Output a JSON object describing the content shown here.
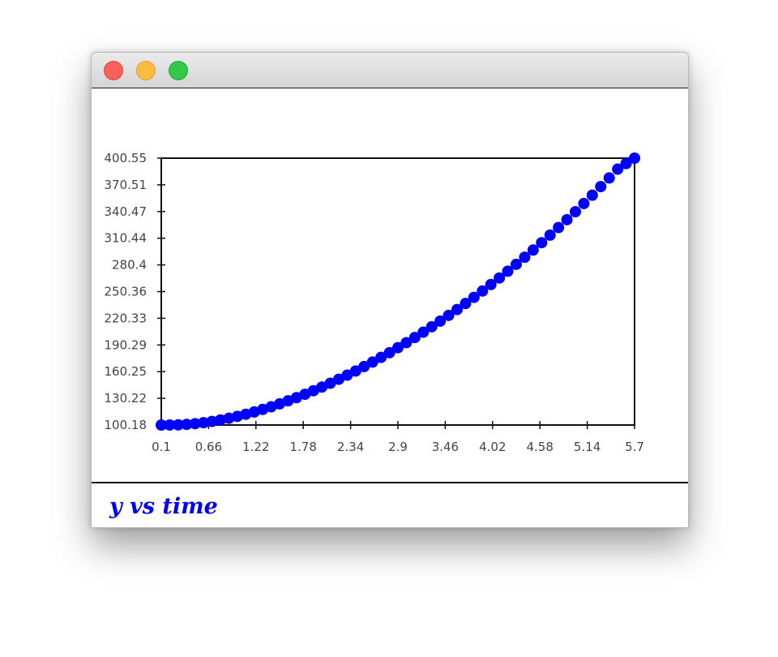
{
  "window": {
    "title": ""
  },
  "caption": "y vs time",
  "colors": {
    "marker": "#0000ff",
    "axis": "#111111",
    "tick_label": "#444444"
  },
  "chart_data": {
    "type": "scatter",
    "title": "",
    "xlabel": "",
    "ylabel": "",
    "xlim": [
      0.1,
      5.7
    ],
    "ylim": [
      100.18,
      400.55
    ],
    "x_ticks": [
      "0.1",
      "0.66",
      "1.22",
      "1.78",
      "2.34",
      "2.9",
      "3.46",
      "4.02",
      "4.58",
      "5.14",
      "5.7"
    ],
    "y_ticks": [
      "100.18",
      "130.22",
      "160.25",
      "190.29",
      "220.33",
      "250.36",
      "280.4",
      "310.44",
      "340.47",
      "370.51",
      "400.55"
    ],
    "grid": false,
    "legend": "none",
    "series": [
      {
        "marker": "circle",
        "color": "#0000ff",
        "points": [
          [
            0.1,
            100.18
          ],
          [
            0.2,
            100.2
          ],
          [
            0.3,
            100.4
          ],
          [
            0.4,
            100.9
          ],
          [
            0.5,
            101.7
          ],
          [
            0.6,
            102.8
          ],
          [
            0.7,
            104.2
          ],
          [
            0.8,
            105.9
          ],
          [
            0.9,
            107.8
          ],
          [
            1.0,
            109.9
          ],
          [
            1.1,
            112.3
          ],
          [
            1.2,
            114.9
          ],
          [
            1.3,
            117.7
          ],
          [
            1.4,
            120.7
          ],
          [
            1.5,
            124.0
          ],
          [
            1.6,
            127.4
          ],
          [
            1.7,
            131.0
          ],
          [
            1.8,
            134.8
          ],
          [
            1.9,
            138.8
          ],
          [
            2.0,
            142.9
          ],
          [
            2.1,
            147.2
          ],
          [
            2.2,
            151.7
          ],
          [
            2.3,
            156.3
          ],
          [
            2.4,
            161.0
          ],
          [
            2.5,
            166.0
          ],
          [
            2.6,
            171.0
          ],
          [
            2.7,
            176.3
          ],
          [
            2.8,
            181.6
          ],
          [
            2.9,
            187.2
          ],
          [
            3.0,
            192.9
          ],
          [
            3.1,
            198.7
          ],
          [
            3.2,
            204.7
          ],
          [
            3.3,
            210.8
          ],
          [
            3.4,
            217.1
          ],
          [
            3.5,
            223.6
          ],
          [
            3.6,
            230.2
          ],
          [
            3.7,
            237.0
          ],
          [
            3.8,
            243.9
          ],
          [
            3.9,
            251.0
          ],
          [
            4.0,
            258.3
          ],
          [
            4.1,
            265.7
          ],
          [
            4.2,
            273.3
          ],
          [
            4.3,
            281.1
          ],
          [
            4.4,
            289.0
          ],
          [
            4.5,
            297.1
          ],
          [
            4.6,
            305.4
          ],
          [
            4.7,
            313.9
          ],
          [
            4.8,
            322.5
          ],
          [
            4.9,
            331.3
          ],
          [
            5.0,
            340.3
          ],
          [
            5.1,
            349.5
          ],
          [
            5.2,
            358.9
          ],
          [
            5.3,
            368.5
          ],
          [
            5.4,
            378.3
          ],
          [
            5.5,
            388.2
          ],
          [
            5.6,
            394.5
          ],
          [
            5.7,
            400.55
          ]
        ]
      }
    ]
  }
}
